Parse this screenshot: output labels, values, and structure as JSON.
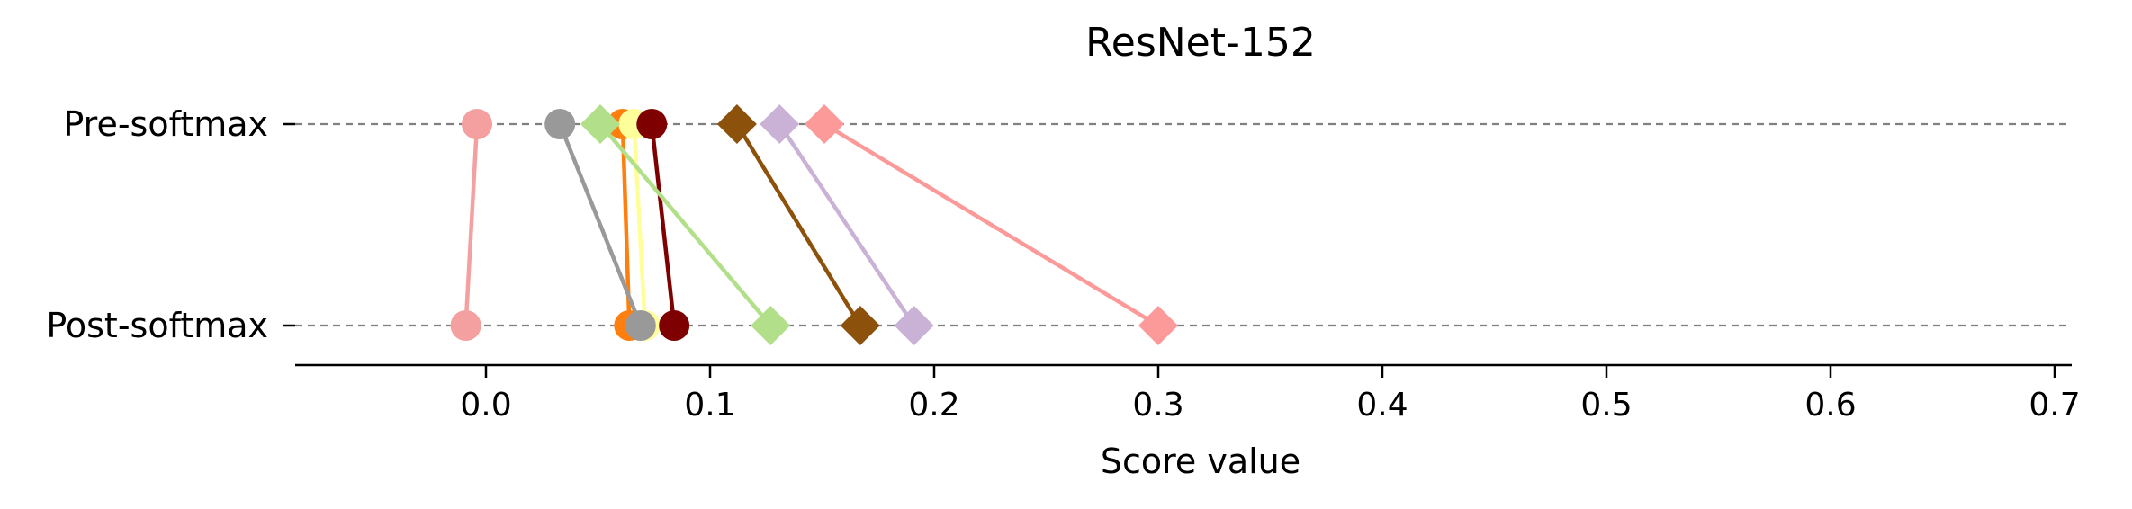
{
  "chart_data": {
    "type": "dumbbell",
    "title": "ResNet-152",
    "xlabel": "Score value",
    "ylabel": "",
    "xlim": [
      -0.085,
      0.725
    ],
    "xticks": [
      0.0,
      0.1,
      0.2,
      0.3,
      0.4,
      0.5,
      0.6,
      0.7
    ],
    "xtick_labels": [
      "0.0",
      "0.1",
      "0.2",
      "0.3",
      "0.4",
      "0.5",
      "0.6",
      "0.7"
    ],
    "categories": [
      "Pre-softmax",
      "Post-softmax"
    ],
    "grid": "dashed horizontal at each category",
    "series": [
      {
        "name": "pink circle",
        "marker": "circle",
        "color": "#f4a0a0",
        "pre": -0.004,
        "post": -0.009
      },
      {
        "name": "orange circle",
        "marker": "circle",
        "color": "#ff7f0e",
        "pre": 0.061,
        "post": 0.064
      },
      {
        "name": "yellow circle",
        "marker": "circle",
        "color": "#ffff99",
        "pre": 0.066,
        "post": 0.071
      },
      {
        "name": "dark red circle",
        "marker": "circle",
        "color": "#7f0000",
        "pre": 0.074,
        "post": 0.084
      },
      {
        "name": "gray circle",
        "marker": "circle",
        "color": "#999999",
        "pre": 0.033,
        "post": 0.069
      },
      {
        "name": "light green diamond",
        "marker": "diamond",
        "color": "#b2df8a",
        "pre": 0.051,
        "post": 0.127
      },
      {
        "name": "brown diamond",
        "marker": "diamond",
        "color": "#8c510a",
        "pre": 0.112,
        "post": 0.167
      },
      {
        "name": "lavender diamond",
        "marker": "diamond",
        "color": "#cab2d6",
        "pre": 0.131,
        "post": 0.191
      },
      {
        "name": "salmon diamond",
        "marker": "diamond",
        "color": "#fb9a99",
        "pre": 0.151,
        "post": 0.3
      }
    ]
  }
}
